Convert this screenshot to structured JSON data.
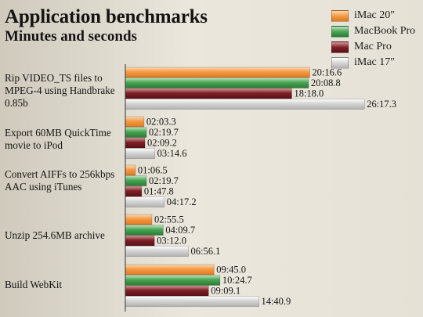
{
  "chart_data": {
    "type": "bar",
    "orientation": "horizontal",
    "title": "Application benchmarks",
    "subtitle": "Minutes and seconds",
    "categories": [
      "Rip VIDEO_TS files to MPEG-4 using Handbrake 0.85b",
      "Export 60MB QuickTime movie to iPod",
      "Convert AIFFs to 256kbps AAC using iTunes",
      "Unzip 254.6MB archive",
      "Build WebKit"
    ],
    "series": [
      {
        "name": "iMac 20″",
        "color": "#f0923a",
        "values": [
          1216.6,
          123.3,
          66.5,
          175.5,
          585.0
        ],
        "labels": [
          "20:16.6",
          "02:03.3",
          "01:06.5",
          "02:55.5",
          "09:45.0"
        ]
      },
      {
        "name": "MacBook Pro",
        "color": "#3f9a4a",
        "values": [
          1208.8,
          139.7,
          139.7,
          249.7,
          624.7
        ],
        "labels": [
          "20:08.8",
          "02:19.7",
          "02:19.7",
          "04:09.7",
          "10:24.7"
        ]
      },
      {
        "name": "Mac Pro",
        "color": "#7a1e22",
        "values": [
          1098.0,
          129.2,
          107.8,
          192.0,
          549.1
        ],
        "labels": [
          "18:18.0",
          "02:09.2",
          "01:47.8",
          "03:12.0",
          "09:09.1"
        ]
      },
      {
        "name": "iMac 17″",
        "color": "#c4c4c4",
        "values": [
          1577.3,
          194.6,
          257.2,
          416.1,
          880.9
        ],
        "labels": [
          "26:17.3",
          "03:14.6",
          "04:17.2",
          "06:56.1",
          "14:40.9"
        ]
      }
    ],
    "value_unit": "seconds",
    "xlim": [
      0,
      1650
    ],
    "grid": false,
    "legend_position": "top-right"
  }
}
